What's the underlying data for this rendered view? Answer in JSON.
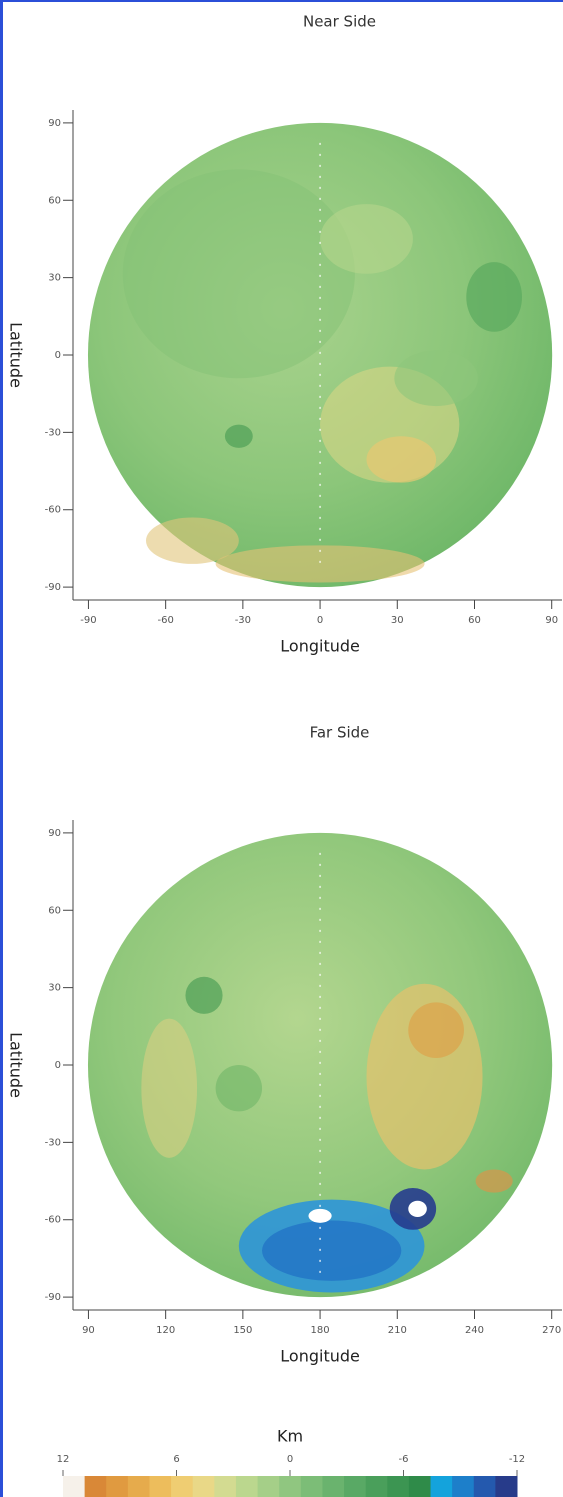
{
  "chart_data": [
    {
      "type": "map",
      "title": "Near Side",
      "xlabel": "Longitude",
      "ylabel": "Latitude",
      "xlim": [
        -96,
        94
      ],
      "ylim": [
        -95,
        95
      ],
      "xticks": [
        -90,
        -60,
        -30,
        0,
        30,
        60,
        90
      ],
      "yticks": [
        90,
        60,
        30,
        0,
        -30,
        -60,
        -90
      ]
    },
    {
      "type": "map",
      "title": "Far Side",
      "xlabel": "Longitude",
      "ylabel": "Latitude",
      "xlim": [
        84,
        274
      ],
      "ylim": [
        -95,
        95
      ],
      "xticks": [
        90,
        120,
        150,
        180,
        210,
        240,
        270
      ],
      "yticks": [
        90,
        60,
        30,
        0,
        -30,
        -60,
        -90
      ]
    },
    {
      "type": "colorbar",
      "title": "Km",
      "clim": [
        12,
        -12
      ],
      "ticks": [
        12,
        6,
        0,
        -6,
        -12
      ],
      "colors": [
        "#f6f1ea",
        "#d98837",
        "#e09a40",
        "#e6ab4c",
        "#edbd5c",
        "#efcd72",
        "#e9d887",
        "#d3db91",
        "#bbd78e",
        "#a5cf88",
        "#90c680",
        "#7cbd77",
        "#6ab36e",
        "#59a965",
        "#4a9f5b",
        "#3c9552",
        "#2f8b49",
        "#14a3dc",
        "#1d7fca",
        "#2459ae",
        "#273b8a"
      ]
    }
  ]
}
